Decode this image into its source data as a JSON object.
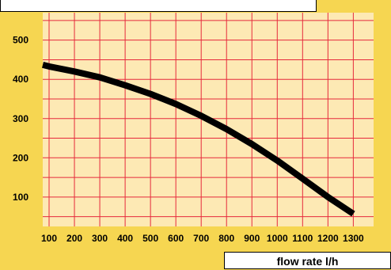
{
  "chart_data": {
    "type": "line",
    "title": "",
    "xlabel": "flow rate l/h",
    "ylabel": "",
    "x_ticks": [
      100,
      200,
      300,
      400,
      500,
      600,
      700,
      800,
      900,
      1000,
      1100,
      1200,
      1300
    ],
    "y_ticks": [
      100,
      200,
      300,
      400,
      500
    ],
    "xlim": [
      75,
      1380
    ],
    "ylim": [
      25,
      570
    ],
    "grid": true,
    "colors": {
      "background": "#f6d651",
      "plot_area": "#fde9b4",
      "grid": "#e62a3c",
      "line": "#000000"
    },
    "series": [
      {
        "x": [
          75,
          100,
          200,
          300,
          400,
          500,
          600,
          700,
          800,
          900,
          1000,
          1100,
          1200,
          1300
        ],
        "y": [
          437,
          433,
          420,
          405,
          385,
          363,
          337,
          307,
          273,
          235,
          193,
          147,
          100,
          57
        ]
      }
    ]
  }
}
